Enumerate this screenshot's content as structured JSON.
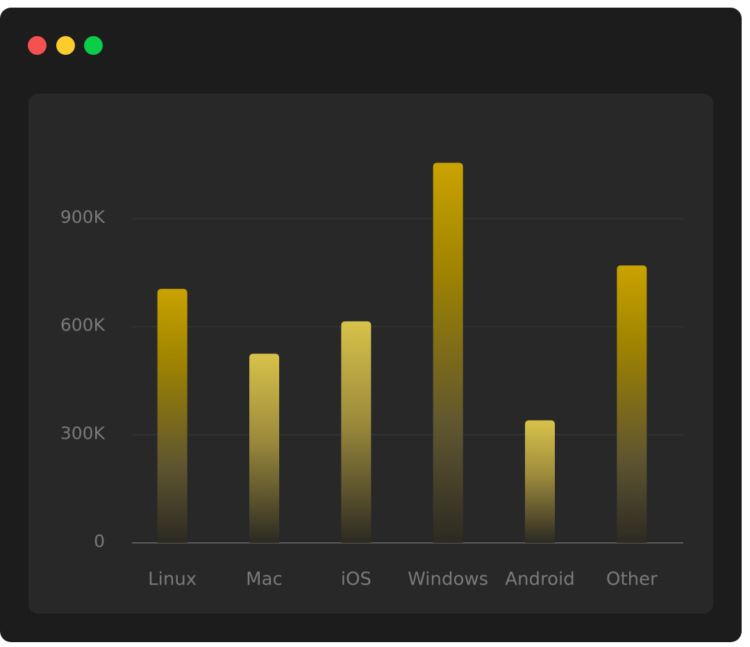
{
  "window": {
    "controls": [
      {
        "name": "close",
        "color": "#f55150"
      },
      {
        "name": "minimize",
        "color": "#fbcc2c"
      },
      {
        "name": "maximize",
        "color": "#0acd48"
      }
    ]
  },
  "colors": {
    "bar_top": "#c9a300",
    "bar_mid": "#a08400",
    "bar_light": "#d8c24a",
    "bar_bottom": "#2c2a22",
    "grid": "#353535",
    "axis": "#5a5a5a"
  },
  "chart_data": {
    "type": "bar",
    "categories": [
      "Linux",
      "Mac",
      "iOS",
      "Windows",
      "Android",
      "Other"
    ],
    "values": [
      705000,
      525000,
      615000,
      1055000,
      340000,
      770000
    ],
    "y_ticks": [
      0,
      300000,
      600000,
      900000
    ],
    "y_tick_labels": [
      "0",
      "300K",
      "600K",
      "900K"
    ],
    "ylim": [
      0,
      1100000
    ],
    "grid": true,
    "title": "",
    "xlabel": "",
    "ylabel": ""
  }
}
